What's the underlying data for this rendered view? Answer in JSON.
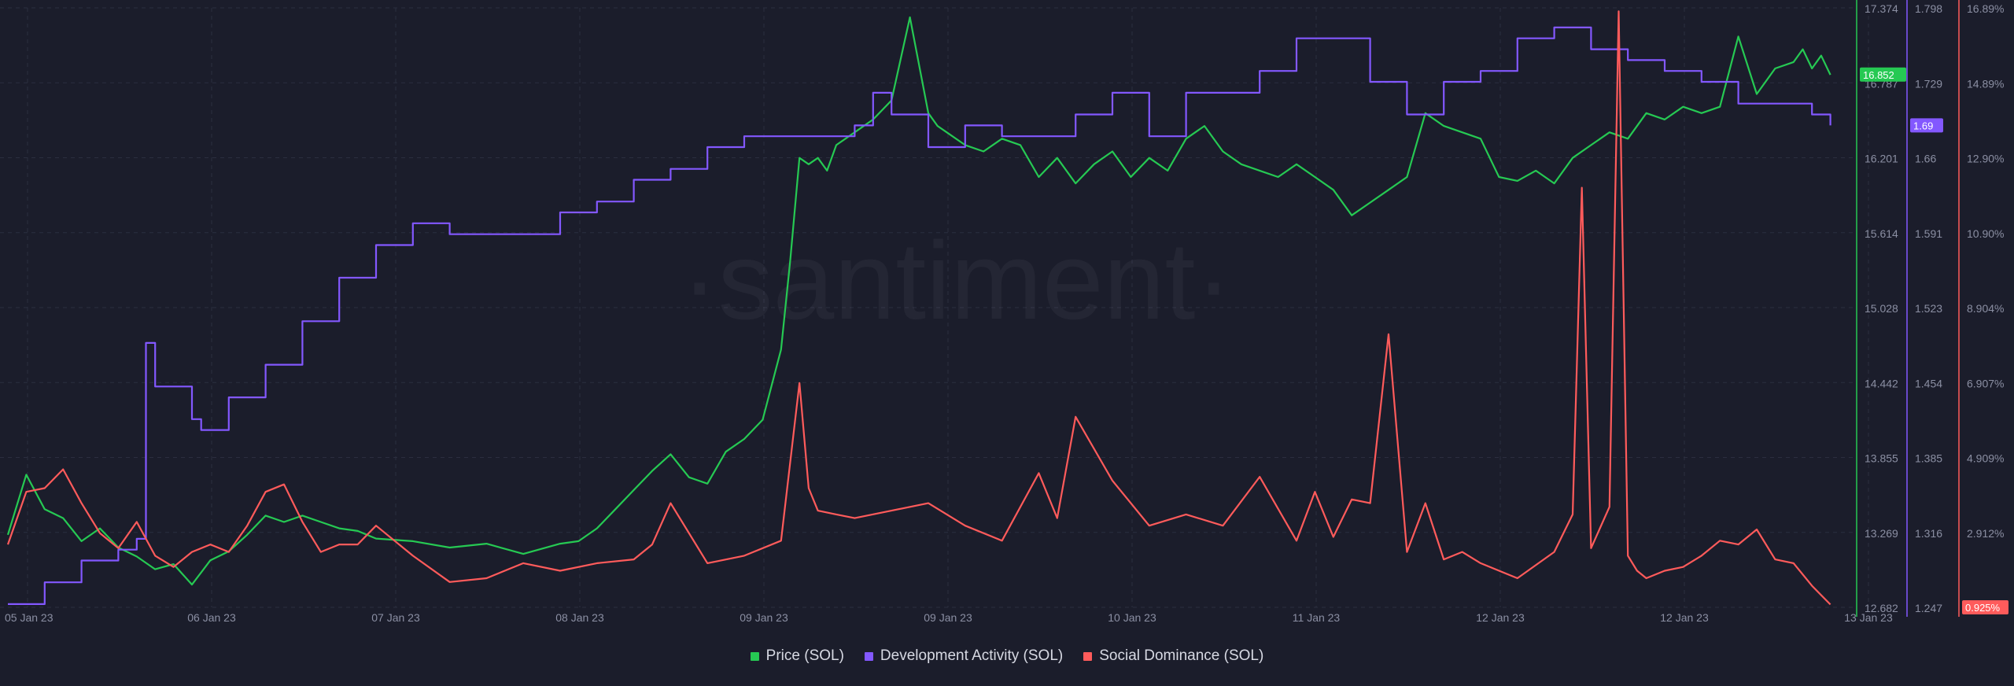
{
  "watermark": "·santiment·",
  "colors": {
    "background": "#1b1d2b",
    "grid": "#2b2e3f",
    "price": "#26c953",
    "dev": "#8358ff",
    "social": "#ff5b5b",
    "tick_text": "#8b8fa3"
  },
  "legend": [
    {
      "label": "Price (SOL)",
      "color": "#26c953"
    },
    {
      "label": "Development Activity (SOL)",
      "color": "#8358ff"
    },
    {
      "label": "Social Dominance (SOL)",
      "color": "#ff5b5b"
    }
  ],
  "chart_data": {
    "type": "line",
    "x_ticks": [
      "05 Jan 23",
      "06 Jan 23",
      "07 Jan 23",
      "08 Jan 23",
      "09 Jan 23",
      "09 Jan 23",
      "10 Jan 23",
      "11 Jan 23",
      "12 Jan 23",
      "12 Jan 23",
      "13 Jan 23"
    ],
    "x_range": [
      0,
      10
    ],
    "grid": true,
    "legend_position": "bottom",
    "axes": [
      {
        "id": "price",
        "series": "Price (SOL)",
        "ticks": [
          "17.374",
          "16.787",
          "16.201",
          "15.614",
          "15.028",
          "14.442",
          "13.855",
          "13.269",
          "12.682"
        ],
        "ylim": [
          12.682,
          17.374
        ],
        "current_label": "16.852",
        "current_value": 16.852
      },
      {
        "id": "dev",
        "series": "Development Activity (SOL)",
        "ticks": [
          "1.798",
          "1.729",
          "1.66",
          "1.591",
          "1.523",
          "1.454",
          "1.385",
          "1.316",
          "1.247"
        ],
        "ylim": [
          1.247,
          1.798
        ],
        "current_label": "1.69",
        "current_value": 1.69
      },
      {
        "id": "social",
        "series": "Social Dominance (SOL)",
        "ticks": [
          "16.89%",
          "14.89%",
          "12.90%",
          "10.90%",
          "8.904%",
          "6.907%",
          "4.909%",
          "2.912%"
        ],
        "ylim": [
          0.925,
          16.89
        ],
        "current_label": "0.925%",
        "current_value": 0.925
      }
    ],
    "series": [
      {
        "name": "Price (SOL)",
        "axis": "price",
        "x": [
          0,
          0.1,
          0.2,
          0.3,
          0.4,
          0.5,
          0.6,
          0.7,
          0.8,
          0.9,
          1.0,
          1.1,
          1.2,
          1.3,
          1.4,
          1.5,
          1.6,
          1.7,
          1.8,
          1.9,
          2.0,
          2.2,
          2.4,
          2.6,
          2.8,
          3.0,
          3.1,
          3.2,
          3.3,
          3.4,
          3.5,
          3.6,
          3.7,
          3.8,
          3.9,
          4.0,
          4.1,
          4.2,
          4.25,
          4.3,
          4.35,
          4.4,
          4.45,
          4.5,
          4.6,
          4.7,
          4.8,
          4.9,
          5.0,
          5.05,
          5.1,
          5.2,
          5.3,
          5.4,
          5.5,
          5.6,
          5.7,
          5.8,
          5.9,
          6.0,
          6.1,
          6.2,
          6.3,
          6.4,
          6.5,
          6.6,
          6.7,
          6.8,
          6.9,
          7.0,
          7.1,
          7.2,
          7.3,
          7.4,
          7.5,
          7.6,
          7.7,
          7.8,
          7.9,
          8.0,
          8.1,
          8.2,
          8.3,
          8.4,
          8.5,
          8.6,
          8.7,
          8.8,
          8.9,
          9.0,
          9.1,
          9.2,
          9.3,
          9.4,
          9.5,
          9.6,
          9.7,
          9.75,
          9.8,
          9.85,
          9.9
        ],
        "y": [
          13.25,
          13.72,
          13.45,
          13.38,
          13.2,
          13.3,
          13.15,
          13.08,
          12.98,
          13.02,
          12.86,
          13.05,
          13.12,
          13.25,
          13.4,
          13.35,
          13.4,
          13.35,
          13.3,
          13.28,
          13.22,
          13.2,
          13.15,
          13.18,
          13.1,
          13.18,
          13.2,
          13.3,
          13.45,
          13.6,
          13.75,
          13.88,
          13.7,
          13.65,
          13.9,
          14.0,
          14.15,
          14.7,
          15.4,
          16.2,
          16.15,
          16.2,
          16.1,
          16.3,
          16.4,
          16.5,
          16.65,
          17.3,
          16.55,
          16.45,
          16.4,
          16.3,
          16.25,
          16.35,
          16.3,
          16.05,
          16.2,
          16.0,
          16.15,
          16.25,
          16.05,
          16.2,
          16.1,
          16.35,
          16.45,
          16.25,
          16.15,
          16.1,
          16.05,
          16.15,
          16.05,
          15.95,
          15.75,
          15.85,
          15.95,
          16.05,
          16.55,
          16.45,
          16.4,
          16.35,
          16.05,
          16.02,
          16.1,
          16.0,
          16.2,
          16.3,
          16.4,
          16.35,
          16.55,
          16.5,
          16.6,
          16.55,
          16.6,
          17.15,
          16.7,
          16.9,
          16.95,
          17.05,
          16.9,
          17.0,
          16.85
        ]
      },
      {
        "name": "Development Activity (SOL)",
        "axis": "dev",
        "x": [
          0,
          0.2,
          0.4,
          0.6,
          0.7,
          0.75,
          0.8,
          1.0,
          1.05,
          1.2,
          1.4,
          1.6,
          1.8,
          2.0,
          2.2,
          2.4,
          2.6,
          2.8,
          3.0,
          3.2,
          3.4,
          3.6,
          3.8,
          4.0,
          4.2,
          4.4,
          4.6,
          4.7,
          4.8,
          5.0,
          5.2,
          5.4,
          5.6,
          5.8,
          6.0,
          6.2,
          6.4,
          6.6,
          6.8,
          7.0,
          7.2,
          7.4,
          7.6,
          7.8,
          8.0,
          8.2,
          8.4,
          8.6,
          8.8,
          9.0,
          9.2,
          9.4,
          9.6,
          9.8,
          9.9
        ],
        "y": [
          1.25,
          1.27,
          1.29,
          1.3,
          1.31,
          1.49,
          1.45,
          1.42,
          1.41,
          1.44,
          1.47,
          1.51,
          1.55,
          1.58,
          1.6,
          1.59,
          1.59,
          1.59,
          1.61,
          1.62,
          1.64,
          1.65,
          1.67,
          1.68,
          1.68,
          1.68,
          1.69,
          1.72,
          1.7,
          1.67,
          1.69,
          1.68,
          1.68,
          1.7,
          1.72,
          1.68,
          1.72,
          1.72,
          1.74,
          1.77,
          1.77,
          1.73,
          1.7,
          1.73,
          1.74,
          1.77,
          1.78,
          1.76,
          1.75,
          1.74,
          1.73,
          1.71,
          1.71,
          1.7,
          1.69
        ]
      },
      {
        "name": "Social Dominance (SOL)",
        "axis": "social",
        "x": [
          0,
          0.1,
          0.2,
          0.3,
          0.4,
          0.5,
          0.6,
          0.7,
          0.8,
          0.9,
          1.0,
          1.1,
          1.2,
          1.3,
          1.4,
          1.5,
          1.6,
          1.7,
          1.8,
          1.9,
          2.0,
          2.2,
          2.4,
          2.6,
          2.8,
          3.0,
          3.2,
          3.4,
          3.5,
          3.6,
          3.8,
          4.0,
          4.2,
          4.3,
          4.35,
          4.4,
          4.5,
          4.6,
          4.8,
          5.0,
          5.2,
          5.4,
          5.6,
          5.7,
          5.8,
          6.0,
          6.2,
          6.4,
          6.6,
          6.8,
          7.0,
          7.1,
          7.2,
          7.3,
          7.4,
          7.5,
          7.6,
          7.7,
          7.8,
          7.9,
          8.0,
          8.2,
          8.4,
          8.5,
          8.55,
          8.6,
          8.7,
          8.75,
          8.8,
          8.85,
          8.9,
          9.0,
          9.1,
          9.2,
          9.3,
          9.4,
          9.5,
          9.6,
          9.7,
          9.8,
          9.9
        ],
        "y": [
          2.6,
          4.0,
          4.1,
          4.6,
          3.7,
          2.9,
          2.5,
          3.2,
          2.3,
          2.0,
          2.4,
          2.6,
          2.4,
          3.1,
          4.0,
          4.2,
          3.2,
          2.4,
          2.6,
          2.6,
          3.1,
          2.3,
          1.6,
          1.7,
          2.1,
          1.9,
          2.1,
          2.2,
          2.6,
          3.7,
          2.1,
          2.3,
          2.7,
          6.9,
          4.1,
          3.5,
          3.4,
          3.3,
          3.5,
          3.7,
          3.1,
          2.7,
          4.5,
          3.3,
          6.0,
          4.3,
          3.1,
          3.4,
          3.1,
          4.4,
          2.7,
          4.0,
          2.8,
          3.8,
          3.7,
          8.2,
          2.4,
          3.7,
          2.2,
          2.4,
          2.1,
          1.7,
          2.4,
          3.4,
          12.1,
          2.5,
          3.6,
          16.8,
          2.3,
          1.9,
          1.7,
          1.9,
          2.0,
          2.3,
          2.7,
          2.6,
          3.0,
          2.2,
          2.1,
          1.5,
          1.0
        ]
      }
    ]
  }
}
